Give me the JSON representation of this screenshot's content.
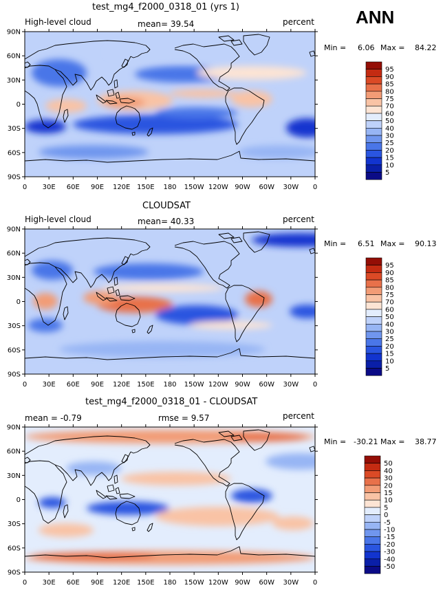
{
  "season": "ANN",
  "panels": [
    {
      "title": "test_mg4_f2000_0318_01 (yrs 1)",
      "left_label": "High-level cloud",
      "center_label": "mean=  39.54",
      "right_label": "percent",
      "min_label": "Min =",
      "min_value": "6.06",
      "max_label": "Max =",
      "max_value": "84.22",
      "colorbar_labels": [
        "95",
        "90",
        "85",
        "80",
        "75",
        "70",
        "60",
        "50",
        "40",
        "30",
        "25",
        "20",
        "15",
        "10",
        "5"
      ]
    },
    {
      "title": "CLOUDSAT",
      "left_label": "High-level cloud",
      "center_label": "mean=  40.33",
      "right_label": "percent",
      "min_label": "Min =",
      "min_value": "6.51",
      "max_label": "Max =",
      "max_value": "90.13",
      "colorbar_labels": [
        "95",
        "90",
        "85",
        "80",
        "75",
        "70",
        "60",
        "50",
        "40",
        "30",
        "25",
        "20",
        "15",
        "10",
        "5"
      ]
    },
    {
      "title": "test_mg4_f2000_0318_01 - CLOUDSAT",
      "left_label": "mean =  -0.79",
      "center_label": "rmse =   9.57",
      "right_label": "percent",
      "min_label": "Min =",
      "min_value": "-30.21",
      "max_label": "Max =",
      "max_value": "38.77",
      "colorbar_labels": [
        "50",
        "40",
        "30",
        "20",
        "15",
        "10",
        "5",
        "0",
        "-5",
        "-10",
        "-15",
        "-20",
        "-30",
        "-40",
        "-50"
      ]
    }
  ],
  "lat_ticks": [
    "90N",
    "60N",
    "30N",
    "0",
    "30S",
    "60S",
    "90S"
  ],
  "lon_ticks": [
    "0",
    "30E",
    "60E",
    "90E",
    "120E",
    "150E",
    "180",
    "150W",
    "120W",
    "90W",
    "60W",
    "30W",
    "0"
  ],
  "colors": {
    "abs_scale": [
      "#0b0b86",
      "#0a1fa8",
      "#1234cf",
      "#2a55e0",
      "#4a76e8",
      "#7096ee",
      "#97b5f4",
      "#bfd2fa",
      "#e3edfd",
      "#fde4d4",
      "#f9c3a5",
      "#f29c76",
      "#e8714a",
      "#db4a26",
      "#c42b12",
      "#940e06"
    ],
    "diff_scale": [
      "#0b0b86",
      "#0a1fa8",
      "#1234cf",
      "#2a55e0",
      "#4a76e8",
      "#7096ee",
      "#97b5f4",
      "#bfd2fa",
      "#e3edfd",
      "#fde4d4",
      "#f9c3a5",
      "#f29c76",
      "#e8714a",
      "#db4a26",
      "#c42b12",
      "#940e06"
    ]
  },
  "chart_data": [
    {
      "type": "heatmap",
      "title": "test_mg4_f2000_0318_01 (yrs 1)",
      "variable": "High-level cloud",
      "units": "percent",
      "mean": 39.54,
      "min": 6.06,
      "max": 84.22,
      "levels": [
        5,
        10,
        15,
        20,
        25,
        30,
        40,
        50,
        60,
        70,
        75,
        80,
        85,
        90,
        95
      ],
      "x_ticks": [
        "0",
        "30E",
        "60E",
        "90E",
        "120E",
        "150E",
        "180",
        "150W",
        "120W",
        "90W",
        "60W",
        "30W",
        "0"
      ],
      "y_ticks": [
        "90N",
        "60N",
        "30N",
        "0",
        "30S",
        "60S",
        "90S"
      ],
      "xlim": [
        0,
        360
      ],
      "ylim": [
        -90,
        90
      ]
    },
    {
      "type": "heatmap",
      "title": "CLOUDSAT",
      "variable": "High-level cloud",
      "units": "percent",
      "mean": 40.33,
      "min": 6.51,
      "max": 90.13,
      "levels": [
        5,
        10,
        15,
        20,
        25,
        30,
        40,
        50,
        60,
        70,
        75,
        80,
        85,
        90,
        95
      ],
      "x_ticks": [
        "0",
        "30E",
        "60E",
        "90E",
        "120E",
        "150E",
        "180",
        "150W",
        "120W",
        "90W",
        "60W",
        "30W",
        "0"
      ],
      "y_ticks": [
        "90N",
        "60N",
        "30N",
        "0",
        "30S",
        "60S",
        "90S"
      ],
      "xlim": [
        0,
        360
      ],
      "ylim": [
        -90,
        90
      ]
    },
    {
      "type": "heatmap",
      "title": "test_mg4_f2000_0318_01 - CLOUDSAT",
      "units": "percent",
      "mean": -0.79,
      "rmse": 9.57,
      "min": -30.21,
      "max": 38.77,
      "levels": [
        -50,
        -40,
        -30,
        -20,
        -15,
        -10,
        -5,
        0,
        5,
        10,
        15,
        20,
        30,
        40,
        50
      ],
      "x_ticks": [
        "0",
        "30E",
        "60E",
        "90E",
        "120E",
        "150E",
        "180",
        "150W",
        "120W",
        "90W",
        "60W",
        "30W",
        "0"
      ],
      "y_ticks": [
        "90N",
        "60N",
        "30N",
        "0",
        "30S",
        "60S",
        "90S"
      ],
      "xlim": [
        0,
        360
      ],
      "ylim": [
        -90,
        90
      ]
    }
  ]
}
